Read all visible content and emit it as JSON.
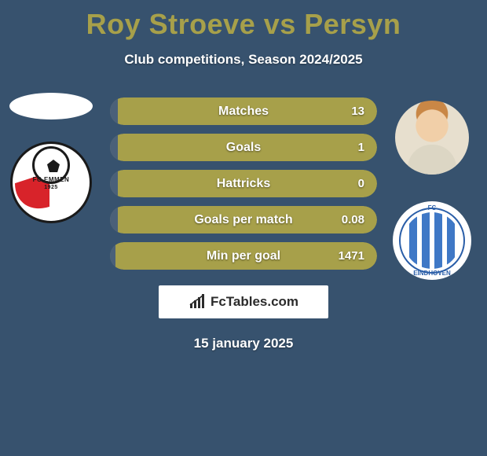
{
  "title": "Roy Stroeve vs Persyn",
  "subtitle": "Club competitions, Season 2024/2025",
  "date": "15 january 2025",
  "attribution": "FcTables.com",
  "colors": {
    "background": "#37526e",
    "title": "#a7a04a",
    "bar_fill": "#a7a04a",
    "bar_left": "#4a6079",
    "text": "#ffffff"
  },
  "left": {
    "player_name": "Roy Stroeve",
    "club_label": "FC EMMEN",
    "club_year": "1925"
  },
  "right": {
    "player_name": "Persyn",
    "club_top": "FC",
    "club_bottom": "EINDHOVEN"
  },
  "stats": [
    {
      "label": "Matches",
      "right_value": "13",
      "left_bar_pct": 3
    },
    {
      "label": "Goals",
      "right_value": "1",
      "left_bar_pct": 3
    },
    {
      "label": "Hattricks",
      "right_value": "0",
      "left_bar_pct": 3
    },
    {
      "label": "Goals per match",
      "right_value": "0.08",
      "left_bar_pct": 3
    },
    {
      "label": "Min per goal",
      "right_value": "1471",
      "left_bar_pct": 2
    }
  ]
}
